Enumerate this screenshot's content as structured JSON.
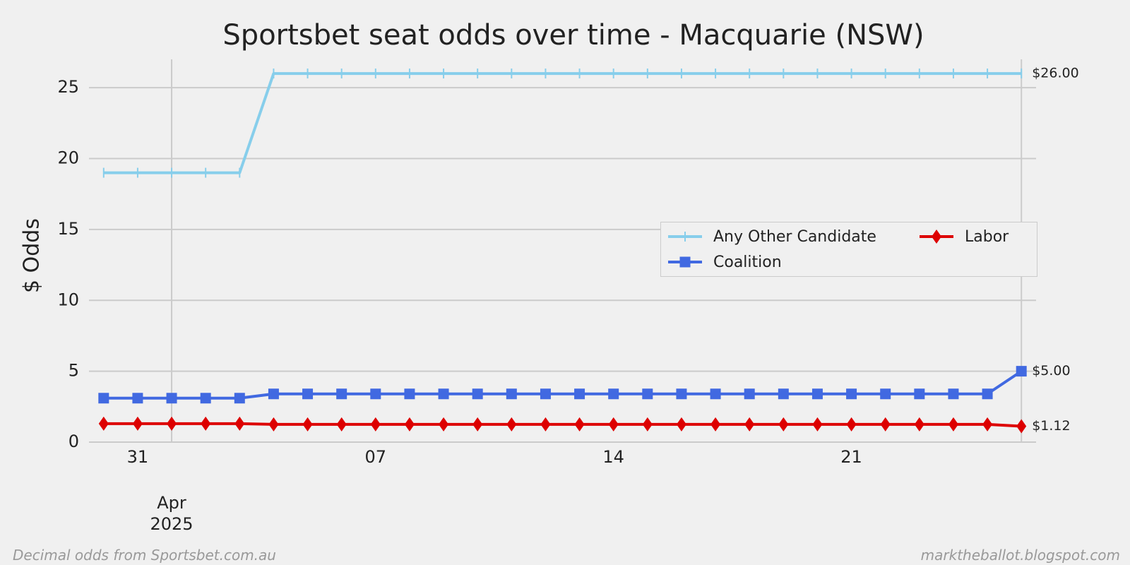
{
  "chart_data": {
    "type": "line",
    "title": "Sportsbet seat odds over time - Macquarie (NSW)",
    "y_label": "$ Odds",
    "x": [
      "2025-03-30",
      "2025-03-31",
      "2025-04-01",
      "2025-04-02",
      "2025-04-03",
      "2025-04-04",
      "2025-04-05",
      "2025-04-06",
      "2025-04-07",
      "2025-04-08",
      "2025-04-09",
      "2025-04-10",
      "2025-04-11",
      "2025-04-12",
      "2025-04-13",
      "2025-04-14",
      "2025-04-15",
      "2025-04-16",
      "2025-04-17",
      "2025-04-18",
      "2025-04-19",
      "2025-04-20",
      "2025-04-21",
      "2025-04-22",
      "2025-04-23",
      "2025-04-24",
      "2025-04-25",
      "2025-04-26"
    ],
    "series": [
      {
        "name": "Any Other Candidate",
        "color": "#87ceeb",
        "marker": "tick",
        "values": [
          19,
          19,
          19,
          19,
          19,
          26,
          26,
          26,
          26,
          26,
          26,
          26,
          26,
          26,
          26,
          26,
          26,
          26,
          26,
          26,
          26,
          26,
          26,
          26,
          26,
          26,
          26,
          26
        ],
        "value_labels": [
          null,
          null,
          null,
          null,
          null,
          null,
          null,
          null,
          null,
          null,
          null,
          null,
          null,
          null,
          null,
          null,
          null,
          null,
          null,
          null,
          null,
          null,
          null,
          null,
          null,
          null,
          null,
          "$26.00"
        ]
      },
      {
        "name": "Coalition",
        "color": "#4169e1",
        "marker": "square",
        "values": [
          3.1,
          3.1,
          3.1,
          3.1,
          3.1,
          3.4,
          3.4,
          3.4,
          3.4,
          3.4,
          3.4,
          3.4,
          3.4,
          3.4,
          3.4,
          3.4,
          3.4,
          3.4,
          3.4,
          3.4,
          3.4,
          3.4,
          3.4,
          3.4,
          3.4,
          3.4,
          3.4,
          5
        ],
        "value_labels": [
          null,
          null,
          null,
          null,
          null,
          null,
          null,
          null,
          null,
          null,
          null,
          null,
          null,
          null,
          null,
          null,
          null,
          null,
          null,
          null,
          null,
          null,
          null,
          null,
          null,
          null,
          null,
          "$5.00"
        ]
      },
      {
        "name": "Labor",
        "color": "#dd0000",
        "marker": "diamond",
        "values": [
          1.3,
          1.3,
          1.3,
          1.3,
          1.3,
          1.25,
          1.25,
          1.25,
          1.25,
          1.25,
          1.25,
          1.25,
          1.25,
          1.25,
          1.25,
          1.25,
          1.25,
          1.25,
          1.25,
          1.25,
          1.25,
          1.25,
          1.25,
          1.25,
          1.25,
          1.25,
          1.25,
          1.12
        ],
        "value_labels": [
          null,
          null,
          null,
          null,
          null,
          null,
          null,
          null,
          null,
          null,
          null,
          null,
          null,
          null,
          null,
          null,
          null,
          null,
          null,
          null,
          null,
          null,
          null,
          null,
          null,
          null,
          null,
          "$1.12"
        ]
      }
    ],
    "ylim": [
      0,
      27
    ],
    "yticks": [
      0,
      5,
      10,
      15,
      20,
      25
    ],
    "xticks": [
      {
        "value": "2025-03-31",
        "label": "31"
      },
      {
        "value": "2025-04-07",
        "label": "07"
      },
      {
        "value": "2025-04-14",
        "label": "14"
      },
      {
        "value": "2025-04-21",
        "label": "21"
      }
    ],
    "xticks_major": [
      {
        "value": "2025-04-01",
        "label": "Apr\n2025"
      }
    ],
    "grid": true,
    "legend": "right",
    "footer_left": "Decimal odds from Sportsbet.com.au",
    "footer_right": "marktheballot.blogspot.com"
  }
}
